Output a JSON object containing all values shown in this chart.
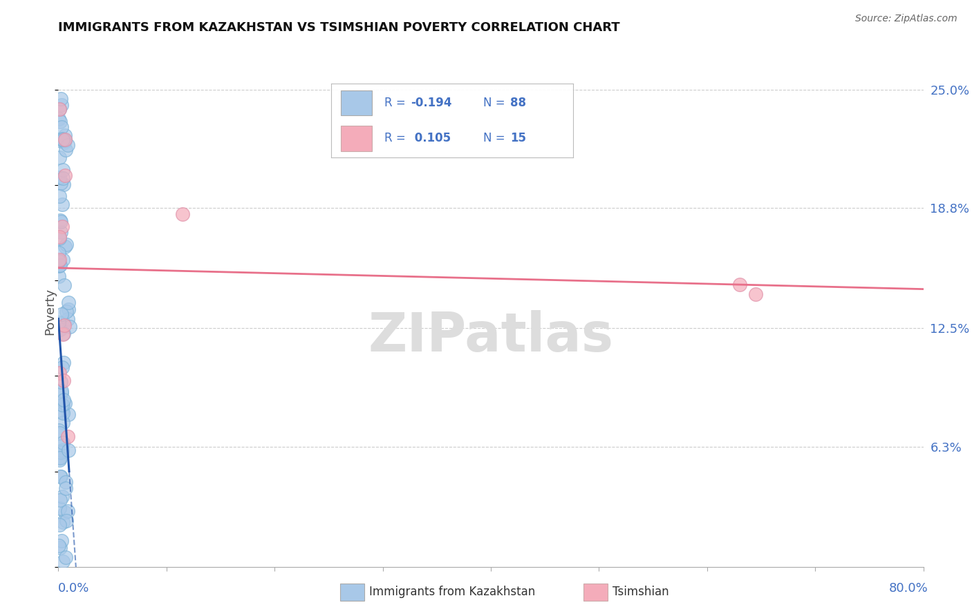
{
  "title": "IMMIGRANTS FROM KAZAKHSTAN VS TSIMSHIAN POVERTY CORRELATION CHART",
  "source": "Source: ZipAtlas.com",
  "ylabel": "Poverty",
  "ytick_values": [
    0.063,
    0.125,
    0.188,
    0.25
  ],
  "ytick_labels": [
    "6.3%",
    "12.5%",
    "18.8%",
    "25.0%"
  ],
  "xlim": [
    0.0,
    0.8
  ],
  "ylim": [
    0.0,
    0.268
  ],
  "legend_label1": "Immigrants from Kazakhstan",
  "legend_label2": "Tsimshian",
  "R1": -0.194,
  "N1": 88,
  "R2": 0.105,
  "N2": 15,
  "watermark": "ZIPatlas",
  "blue_color": "#A8C8E8",
  "blue_fill": "#7EB3D8",
  "pink_color": "#F4ACBA",
  "blue_line_color": "#2255AA",
  "pink_line_color": "#E8708A",
  "background_color": "#FFFFFF",
  "grid_color": "#CCCCCC",
  "title_color": "#111111",
  "axis_label_color": "#4472C4",
  "legend_text_color": "#333333",
  "legend_value_color": "#4472C4"
}
